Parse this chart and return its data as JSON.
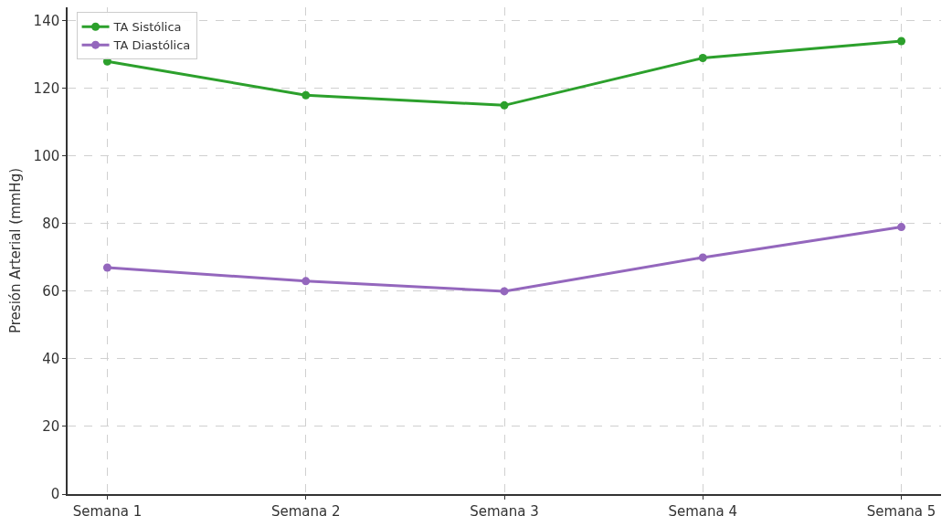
{
  "chart_data": {
    "type": "line",
    "ylabel": "Presión Arterial (mmHg)",
    "categories": [
      "Semana 1",
      "Semana 2",
      "Semana 3",
      "Semana 4",
      "Semana 5"
    ],
    "series": [
      {
        "name": "TA Sistólica",
        "color": "#2ca02c",
        "values": [
          128,
          118,
          115,
          129,
          134
        ]
      },
      {
        "name": "TA Diastólica",
        "color": "#9467bd",
        "values": [
          67,
          63,
          60,
          70,
          79
        ]
      }
    ],
    "ylim": [
      0,
      144
    ],
    "yticks": [
      0,
      20,
      40,
      60,
      80,
      100,
      120,
      140
    ],
    "grid": true,
    "legend": "top left",
    "marker": "circle",
    "line_style": "solid"
  }
}
